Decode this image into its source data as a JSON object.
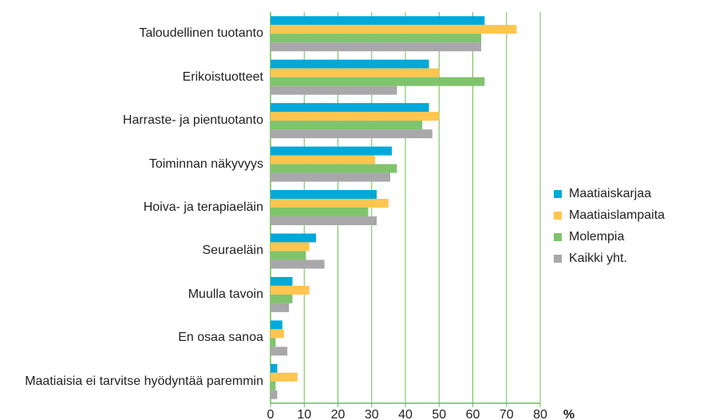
{
  "chart_data": {
    "type": "bar",
    "orientation": "horizontal",
    "categories": [
      "Taloudellinen tuotanto",
      "Erikoistuotteet",
      "Harraste- ja pientuotanto",
      "Toiminnan näkyvyys",
      "Hoiva- ja terapiaeläin",
      "Seuraeläin",
      "Muulla tavoin",
      "En osaa sanoa",
      "Maatiaisia ei tarvitse hyödyntää paremmin"
    ],
    "series": [
      {
        "name": "Maatiaiskarjaa",
        "color": "#00a9d9",
        "values": [
          63.5,
          47,
          47,
          36,
          31.5,
          13.5,
          6.5,
          3.5,
          2
        ]
      },
      {
        "name": "Maatiaislampaita",
        "color": "#ffc54f",
        "values": [
          73,
          50,
          50,
          31,
          35,
          11.5,
          11.5,
          4,
          8
        ]
      },
      {
        "name": "Molempia",
        "color": "#7fc46c",
        "values": [
          62.5,
          63.5,
          45,
          37.5,
          29,
          10.5,
          6.5,
          1.5,
          1.5
        ]
      },
      {
        "name": "Kaikki yht.",
        "color": "#a8a8aa",
        "values": [
          62.5,
          37.5,
          48,
          35.5,
          31.5,
          16,
          5.5,
          5,
          2
        ]
      }
    ],
    "x_label": "%",
    "xlim": [
      0,
      80
    ],
    "xticks": [
      0,
      10,
      20,
      30,
      40,
      50,
      60,
      70,
      80
    ],
    "grid": true,
    "grid_color": "#6cbf4e",
    "legend": "right"
  }
}
